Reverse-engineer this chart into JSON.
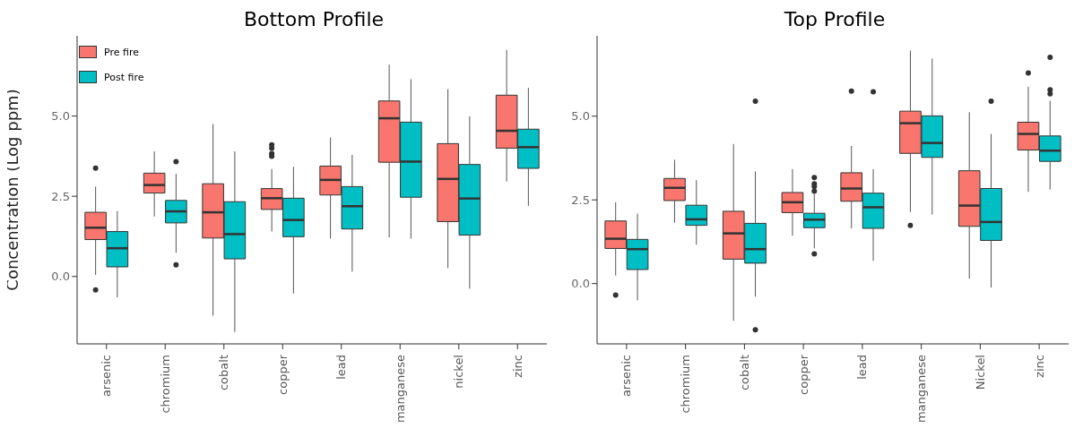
{
  "chart_data": [
    {
      "type": "box",
      "title": "Bottom Profile",
      "ylabel": "Concentration (Log ppm)",
      "categories": [
        "arsenic",
        "chromium",
        "cobalt",
        "copper",
        "lead",
        "manganese",
        "nickel",
        "zinc"
      ],
      "ylim": [
        -2.1,
        7.5
      ],
      "yticks": [
        {
          "value": 0,
          "label": "0.0"
        },
        {
          "value": 2.5,
          "label": "2.5"
        },
        {
          "value": 5,
          "label": "5.0"
        }
      ],
      "grid": false,
      "legend": "top left",
      "series": [
        {
          "name": "Pre fire",
          "color": "#f8766d",
          "boxes": [
            {
              "low": 0.05,
              "q1": 1.15,
              "median": 1.52,
              "q3": 2.0,
              "high": 2.8,
              "outliers": [
                3.38,
                -0.42
              ]
            },
            {
              "low": 1.87,
              "q1": 2.6,
              "median": 2.85,
              "q3": 3.22,
              "high": 3.9
            },
            {
              "low": -1.22,
              "q1": 1.2,
              "median": 2.0,
              "q3": 2.89,
              "high": 4.75
            },
            {
              "low": 1.4,
              "q1": 2.09,
              "median": 2.44,
              "q3": 2.74,
              "high": 3.35,
              "outliers": [
                4.1,
                4.0,
                3.83,
                3.75
              ]
            },
            {
              "low": 1.18,
              "q1": 2.54,
              "median": 3.01,
              "q3": 3.44,
              "high": 4.33
            },
            {
              "low": 1.22,
              "q1": 3.56,
              "median": 4.93,
              "q3": 5.47,
              "high": 6.6
            },
            {
              "low": 0.26,
              "q1": 1.71,
              "median": 3.04,
              "q3": 4.14,
              "high": 5.84
            },
            {
              "low": 2.96,
              "q1": 4.0,
              "median": 4.54,
              "q3": 5.65,
              "high": 7.06
            }
          ]
        },
        {
          "name": "Post fire",
          "color": "#00bfc4",
          "boxes": [
            {
              "low": -0.65,
              "q1": 0.3,
              "median": 0.88,
              "q3": 1.4,
              "high": 2.04
            },
            {
              "low": 0.74,
              "q1": 1.67,
              "median": 2.03,
              "q3": 2.37,
              "high": 3.2,
              "outliers": [
                3.58,
                0.36
              ]
            },
            {
              "low": -1.73,
              "q1": 0.55,
              "median": 1.32,
              "q3": 2.33,
              "high": 3.9
            },
            {
              "low": -0.53,
              "q1": 1.24,
              "median": 1.76,
              "q3": 2.44,
              "high": 3.42
            },
            {
              "low": 0.15,
              "q1": 1.48,
              "median": 2.19,
              "q3": 2.8,
              "high": 3.79
            },
            {
              "low": 1.18,
              "q1": 2.47,
              "median": 3.58,
              "q3": 4.81,
              "high": 6.15
            },
            {
              "low": -0.38,
              "q1": 1.29,
              "median": 2.43,
              "q3": 3.49,
              "high": 4.99
            },
            {
              "low": 2.2,
              "q1": 3.37,
              "median": 4.03,
              "q3": 4.59,
              "high": 5.88
            }
          ]
        }
      ]
    },
    {
      "type": "box",
      "title": "Top Profile",
      "categories": [
        "arsenic",
        "chromium",
        "cobalt",
        "copper",
        "lead",
        "manganese",
        "Nickel",
        "zinc"
      ],
      "ylim": [
        -1.8,
        7.4
      ],
      "yticks": [
        {
          "value": 0,
          "label": "0.0"
        },
        {
          "value": 2.5,
          "label": "2.5"
        },
        {
          "value": 5,
          "label": "5.0"
        }
      ],
      "grid": false,
      "legend": false,
      "series": [
        {
          "color": "#f8766d",
          "boxes": [
            {
              "low": 0.24,
              "q1": 1.05,
              "median": 1.34,
              "q3": 1.87,
              "high": 2.43,
              "outliers": [
                -0.34
              ]
            },
            {
              "low": 1.82,
              "q1": 2.48,
              "median": 2.86,
              "q3": 3.14,
              "high": 3.7
            },
            {
              "low": -1.11,
              "q1": 0.73,
              "median": 1.5,
              "q3": 2.16,
              "high": 4.17
            },
            {
              "low": 1.43,
              "q1": 2.12,
              "median": 2.43,
              "q3": 2.72,
              "high": 3.42
            },
            {
              "low": 1.65,
              "q1": 2.46,
              "median": 2.84,
              "q3": 3.31,
              "high": 4.11,
              "outliers": [
                5.75
              ]
            },
            {
              "low": 2.14,
              "q1": 3.89,
              "median": 4.79,
              "q3": 5.15,
              "high": 6.96,
              "outliers": [
                1.74
              ]
            },
            {
              "low": 0.15,
              "q1": 1.71,
              "median": 2.33,
              "q3": 3.37,
              "high": 5.12
            },
            {
              "low": 2.74,
              "q1": 3.99,
              "median": 4.47,
              "q3": 4.82,
              "high": 5.88,
              "outliers": [
                6.29
              ]
            }
          ]
        },
        {
          "color": "#00bfc4",
          "boxes": [
            {
              "low": -0.5,
              "q1": 0.42,
              "median": 1.03,
              "q3": 1.32,
              "high": 2.09
            },
            {
              "low": 1.16,
              "q1": 1.74,
              "median": 1.92,
              "q3": 2.34,
              "high": 3.09
            },
            {
              "low": -0.39,
              "q1": 0.61,
              "median": 1.03,
              "q3": 1.8,
              "high": 3.35,
              "outliers": [
                5.45,
                -1.38
              ]
            },
            {
              "low": 1.05,
              "q1": 1.67,
              "median": 1.91,
              "q3": 2.1,
              "high": 2.67,
              "outliers": [
                3.17,
                2.98,
                2.9,
                2.76,
                0.89
              ]
            },
            {
              "low": 0.68,
              "q1": 1.65,
              "median": 2.28,
              "q3": 2.7,
              "high": 3.42,
              "outliers": [
                5.73
              ]
            },
            {
              "low": 2.06,
              "q1": 3.77,
              "median": 4.2,
              "q3": 5.01,
              "high": 6.72
            },
            {
              "low": -0.12,
              "q1": 1.29,
              "median": 1.84,
              "q3": 2.84,
              "high": 4.47,
              "outliers": [
                5.45
              ]
            },
            {
              "low": 2.81,
              "q1": 3.65,
              "median": 3.97,
              "q3": 4.41,
              "high": 5.46,
              "outliers": [
                6.76,
                5.79,
                5.67
              ]
            }
          ]
        }
      ]
    }
  ]
}
